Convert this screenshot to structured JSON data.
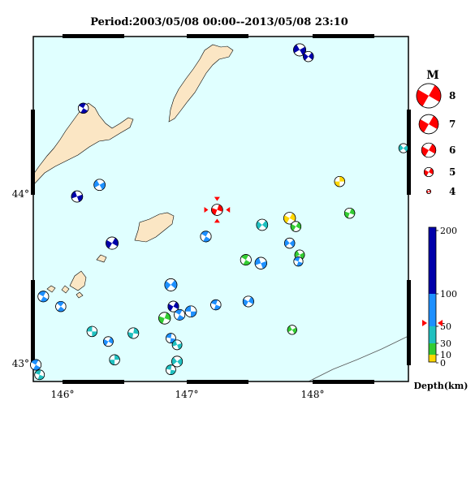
{
  "title": "Period:2003/05/08 00:00--2013/05/08 23:10",
  "axes": {
    "lon_labels": [
      "146°",
      "147°",
      "148°"
    ],
    "lat_labels": [
      "44°",
      "43°"
    ]
  },
  "colors": {
    "sea": "#e0ffff",
    "land": "#fbe6c4",
    "frame": "#000000",
    "event": "#ff0000",
    "depth_0_10": "#ffd700",
    "depth_10_30": "#33cc33",
    "depth_30_60": "#20c0c0",
    "depth_60_100": "#1e90ff",
    "depth_100_200": "#0000aa"
  },
  "magnitude_legend": {
    "title": "M",
    "items": [
      {
        "label": "8",
        "value": 8
      },
      {
        "label": "7",
        "value": 7
      },
      {
        "label": "6",
        "value": 6
      },
      {
        "label": "5",
        "value": 5
      },
      {
        "label": "4",
        "value": 4
      }
    ]
  },
  "depth_legend": {
    "title": "Depth(km)",
    "ticks": [
      "200",
      "100",
      "50",
      "30",
      "10",
      "0"
    ]
  },
  "chart_data": {
    "type": "scatter",
    "xlabel": "",
    "ylabel": "",
    "xlim": [
      145.8,
      148.8
    ],
    "ylim": [
      42.88,
      44.95
    ],
    "mechanisms": [
      {
        "lon": 147.27,
        "lat": 43.91,
        "depth": 15,
        "mag": 5.4,
        "strike": 200,
        "main": true
      },
      {
        "lon": 147.93,
        "lat": 44.87,
        "depth": 120,
        "mag": 5.6,
        "strike": 60
      },
      {
        "lon": 148.0,
        "lat": 44.83,
        "depth": 120,
        "mag": 5.2,
        "strike": 40
      },
      {
        "lon": 146.2,
        "lat": 44.52,
        "depth": 110,
        "mag": 5.2,
        "strike": 300
      },
      {
        "lon": 148.76,
        "lat": 44.28,
        "depth": 40,
        "mag": 5.0,
        "strike": 230
      },
      {
        "lon": 148.25,
        "lat": 44.08,
        "depth": 5,
        "mag": 5.2,
        "strike": 180
      },
      {
        "lon": 146.33,
        "lat": 44.06,
        "depth": 70,
        "mag": 5.4,
        "strike": 240
      },
      {
        "lon": 146.15,
        "lat": 43.99,
        "depth": 120,
        "mag": 5.4,
        "strike": 250
      },
      {
        "lon": 148.33,
        "lat": 43.89,
        "depth": 20,
        "mag": 5.2,
        "strike": 200
      },
      {
        "lon": 147.85,
        "lat": 43.86,
        "depth": 5,
        "mag": 5.5,
        "strike": 30
      },
      {
        "lon": 147.63,
        "lat": 43.82,
        "depth": 40,
        "mag": 5.4,
        "strike": 220
      },
      {
        "lon": 147.9,
        "lat": 43.81,
        "depth": 20,
        "mag": 5.2,
        "strike": 210
      },
      {
        "lon": 147.18,
        "lat": 43.75,
        "depth": 70,
        "mag": 5.3,
        "strike": 300
      },
      {
        "lon": 147.85,
        "lat": 43.71,
        "depth": 70,
        "mag": 5.2,
        "strike": 230
      },
      {
        "lon": 146.43,
        "lat": 43.71,
        "depth": 120,
        "mag": 5.6,
        "strike": 210
      },
      {
        "lon": 147.93,
        "lat": 43.64,
        "depth": 20,
        "mag": 5.1,
        "strike": 60
      },
      {
        "lon": 147.5,
        "lat": 43.61,
        "depth": 20,
        "mag": 5.3,
        "strike": 300
      },
      {
        "lon": 147.62,
        "lat": 43.59,
        "depth": 70,
        "mag": 5.5,
        "strike": 250
      },
      {
        "lon": 147.92,
        "lat": 43.6,
        "depth": 70,
        "mag": 5.0,
        "strike": 290
      },
      {
        "lon": 146.9,
        "lat": 43.46,
        "depth": 70,
        "mag": 5.6,
        "strike": 220
      },
      {
        "lon": 145.88,
        "lat": 43.39,
        "depth": 70,
        "mag": 5.3,
        "strike": 300
      },
      {
        "lon": 146.02,
        "lat": 43.33,
        "depth": 70,
        "mag": 5.2,
        "strike": 310
      },
      {
        "lon": 147.26,
        "lat": 43.34,
        "depth": 70,
        "mag": 5.2,
        "strike": 290
      },
      {
        "lon": 147.52,
        "lat": 43.36,
        "depth": 70,
        "mag": 5.3,
        "strike": 210
      },
      {
        "lon": 146.92,
        "lat": 43.33,
        "depth": 120,
        "mag": 5.3,
        "strike": 210
      },
      {
        "lon": 147.06,
        "lat": 43.3,
        "depth": 70,
        "mag": 5.4,
        "strike": 270
      },
      {
        "lon": 146.97,
        "lat": 43.28,
        "depth": 70,
        "mag": 5.3,
        "strike": 300
      },
      {
        "lon": 146.85,
        "lat": 43.26,
        "depth": 20,
        "mag": 5.5,
        "strike": 200
      },
      {
        "lon": 146.27,
        "lat": 43.18,
        "depth": 40,
        "mag": 5.2,
        "strike": 270
      },
      {
        "lon": 146.6,
        "lat": 43.17,
        "depth": 40,
        "mag": 5.3,
        "strike": 190
      },
      {
        "lon": 147.87,
        "lat": 43.19,
        "depth": 20,
        "mag": 5.0,
        "strike": 60
      },
      {
        "lon": 146.4,
        "lat": 43.12,
        "depth": 70,
        "mag": 5.1,
        "strike": 210
      },
      {
        "lon": 146.9,
        "lat": 43.14,
        "depth": 70,
        "mag": 5.1,
        "strike": 280
      },
      {
        "lon": 146.95,
        "lat": 43.1,
        "depth": 40,
        "mag": 5.1,
        "strike": 250
      },
      {
        "lon": 146.45,
        "lat": 43.01,
        "depth": 40,
        "mag": 5.2,
        "strike": 180
      },
      {
        "lon": 146.95,
        "lat": 43.0,
        "depth": 40,
        "mag": 5.3,
        "strike": 230
      },
      {
        "lon": 146.9,
        "lat": 42.95,
        "depth": 40,
        "mag": 5.1,
        "strike": 280
      },
      {
        "lon": 145.82,
        "lat": 42.98,
        "depth": 70,
        "mag": 5.3,
        "strike": 300
      },
      {
        "lon": 145.85,
        "lat": 42.92,
        "depth": 40,
        "mag": 5.1,
        "strike": 290
      }
    ]
  }
}
